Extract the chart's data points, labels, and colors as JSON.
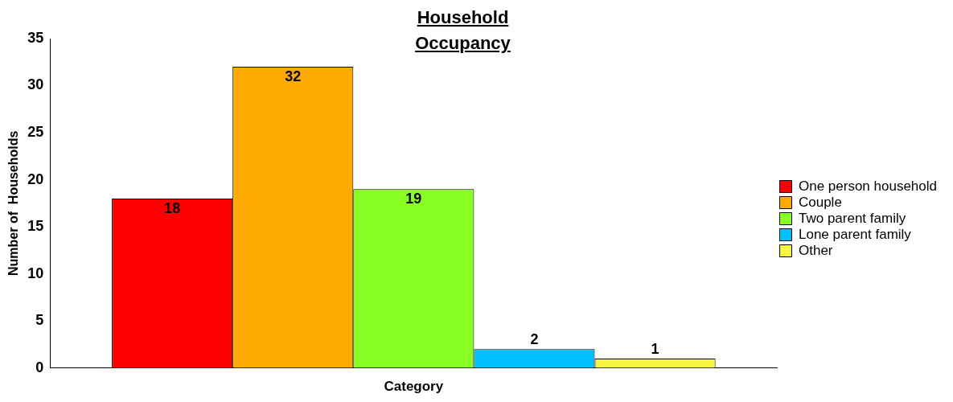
{
  "chart_data": {
    "type": "bar",
    "title": "Household\nOccupancy",
    "xlabel": "Category",
    "ylabel": "Number of  Households",
    "categories": [
      null
    ],
    "series": [
      {
        "name": "One person household",
        "color": "#ff0000",
        "values": [
          18
        ]
      },
      {
        "name": "Couple",
        "color": "#ffaa00",
        "values": [
          32
        ]
      },
      {
        "name": "Two parent family",
        "color": "#88ff22",
        "values": [
          19
        ]
      },
      {
        "name": "Lone parent family",
        "color": "#00c0ff",
        "values": [
          2
        ]
      },
      {
        "name": "Other",
        "color": "#f5f542",
        "values": [
          1
        ]
      }
    ],
    "ylim": [
      0,
      35
    ],
    "yticks": [
      0,
      5,
      10,
      15,
      20,
      25,
      30,
      35
    ],
    "grid": false,
    "legend": "right",
    "data_labels": true
  }
}
